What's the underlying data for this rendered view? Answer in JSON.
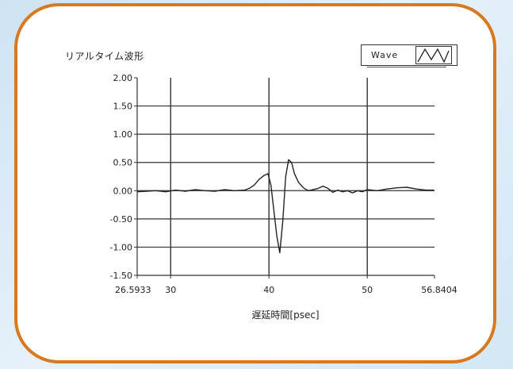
{
  "panel": {
    "title": "リアルタイム波形",
    "border_color": "#d9781f",
    "background": "#ffffff"
  },
  "legend": {
    "label": "Wave",
    "swatch_icon": "waveform-icon"
  },
  "chart_data": {
    "type": "line",
    "title": "リアルタイム波形",
    "xlabel": "遅延時間[psec]",
    "ylabel": "",
    "xlim": [
      26.5933,
      56.8404
    ],
    "ylim": [
      -1.5,
      2.0
    ],
    "x_ticks": [
      {
        "value": 26.5933,
        "label": "26.5933"
      },
      {
        "value": 30,
        "label": "30"
      },
      {
        "value": 40,
        "label": "40"
      },
      {
        "value": 50,
        "label": "50"
      },
      {
        "value": 56.8404,
        "label": "56.8404"
      }
    ],
    "y_ticks": [
      {
        "value": 2.0,
        "label": "2.00"
      },
      {
        "value": 1.5,
        "label": "1.50"
      },
      {
        "value": 1.0,
        "label": "1.00"
      },
      {
        "value": 0.5,
        "label": "0.50"
      },
      {
        "value": 0.0,
        "label": "0.00"
      },
      {
        "value": -0.5,
        "label": "-0.50"
      },
      {
        "value": -1.0,
        "label": "-1.00"
      },
      {
        "value": -1.5,
        "label": "-1.50"
      }
    ],
    "x_gridlines": [
      30,
      40,
      50
    ],
    "y_gridlines": [
      1.5,
      1.0,
      0.5,
      0.0,
      -0.5,
      -1.0
    ],
    "grid": true,
    "legend_position": "top-right",
    "series": [
      {
        "name": "Wave",
        "color": "#222222",
        "x": [
          26.6,
          27.5,
          28.5,
          29.5,
          30.5,
          31.5,
          32.5,
          33.5,
          34.5,
          35.5,
          36.5,
          37.5,
          38.0,
          38.5,
          39.0,
          39.5,
          39.9,
          40.2,
          40.5,
          40.8,
          41.1,
          41.4,
          41.7,
          42.0,
          42.3,
          42.6,
          43.0,
          43.5,
          44.0,
          44.5,
          45.0,
          45.5,
          46.0,
          46.5,
          47.0,
          47.5,
          48.0,
          48.5,
          49.0,
          49.5,
          50.0,
          51.0,
          52.0,
          53.0,
          54.0,
          55.0,
          56.0,
          56.8
        ],
        "y": [
          -0.02,
          -0.01,
          0.0,
          -0.02,
          0.01,
          -0.01,
          0.02,
          0.0,
          -0.01,
          0.02,
          0.0,
          0.01,
          0.04,
          0.1,
          0.2,
          0.27,
          0.3,
          0.1,
          -0.35,
          -0.8,
          -1.1,
          -0.55,
          0.25,
          0.55,
          0.5,
          0.3,
          0.15,
          0.05,
          0.0,
          0.02,
          0.04,
          0.08,
          0.04,
          -0.03,
          0.01,
          -0.02,
          0.0,
          -0.04,
          0.0,
          -0.02,
          0.02,
          0.0,
          0.03,
          0.05,
          0.06,
          0.03,
          0.01,
          0.01
        ]
      }
    ]
  }
}
